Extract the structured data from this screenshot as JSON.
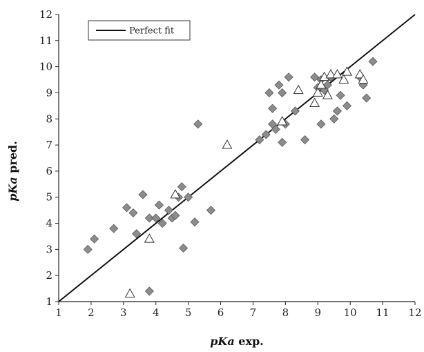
{
  "chart_data": {
    "type": "scatter",
    "xlabel": {
      "italic": "pKa",
      "rest": " exp."
    },
    "ylabel": {
      "italic": "pKa",
      "rest": " pred."
    },
    "xlim": [
      1,
      12
    ],
    "ylim": [
      1,
      12
    ],
    "xticks": [
      1,
      2,
      3,
      4,
      5,
      6,
      7,
      8,
      9,
      10,
      11,
      12
    ],
    "yticks": [
      1,
      2,
      3,
      4,
      5,
      6,
      7,
      8,
      9,
      10,
      11,
      12
    ],
    "grid": false,
    "legend": {
      "position": "top-left",
      "entries": [
        "Perfect fit"
      ]
    },
    "reference_line": {
      "name": "Perfect fit",
      "from": [
        1,
        1
      ],
      "to": [
        12,
        12
      ],
      "color": "#111111"
    },
    "series": [
      {
        "marker": "diamond",
        "color": "#8c8c8c",
        "points": [
          [
            1.9,
            3.0
          ],
          [
            2.1,
            3.4
          ],
          [
            2.7,
            3.8
          ],
          [
            3.1,
            4.6
          ],
          [
            3.3,
            4.4
          ],
          [
            3.4,
            3.6
          ],
          [
            3.6,
            5.1
          ],
          [
            3.8,
            4.2
          ],
          [
            3.8,
            1.4
          ],
          [
            4.0,
            4.2
          ],
          [
            4.1,
            4.7
          ],
          [
            4.2,
            4.0
          ],
          [
            4.4,
            4.5
          ],
          [
            4.5,
            4.2
          ],
          [
            4.6,
            4.3
          ],
          [
            4.7,
            5.0
          ],
          [
            4.8,
            5.4
          ],
          [
            4.85,
            3.05
          ],
          [
            5.0,
            5.0
          ],
          [
            5.2,
            4.05
          ],
          [
            5.3,
            7.8
          ],
          [
            5.7,
            4.5
          ],
          [
            7.2,
            7.2
          ],
          [
            7.4,
            7.4
          ],
          [
            7.5,
            9.0
          ],
          [
            7.6,
            8.4
          ],
          [
            7.6,
            7.8
          ],
          [
            7.7,
            7.6
          ],
          [
            7.8,
            9.3
          ],
          [
            7.9,
            9.0
          ],
          [
            7.9,
            7.1
          ],
          [
            8.0,
            7.8
          ],
          [
            8.1,
            9.6
          ],
          [
            8.3,
            8.3
          ],
          [
            8.6,
            7.2
          ],
          [
            8.9,
            9.6
          ],
          [
            9.0,
            9.2
          ],
          [
            9.1,
            9.5
          ],
          [
            9.1,
            7.8
          ],
          [
            9.2,
            9.1
          ],
          [
            9.3,
            9.3
          ],
          [
            9.4,
            9.6
          ],
          [
            9.5,
            8.0
          ],
          [
            9.6,
            8.3
          ],
          [
            9.7,
            8.9
          ],
          [
            9.9,
            8.5
          ],
          [
            10.3,
            9.6
          ],
          [
            10.4,
            9.3
          ],
          [
            10.5,
            8.8
          ],
          [
            10.7,
            10.2
          ]
        ]
      },
      {
        "marker": "triangle",
        "color": "#ffffff",
        "points": [
          [
            3.2,
            1.3
          ],
          [
            3.8,
            3.4
          ],
          [
            4.6,
            5.1
          ],
          [
            6.2,
            7.0
          ],
          [
            7.9,
            7.9
          ],
          [
            8.4,
            9.1
          ],
          [
            8.9,
            8.6
          ],
          [
            9.0,
            9.0
          ],
          [
            9.1,
            9.3
          ],
          [
            9.2,
            9.6
          ],
          [
            9.3,
            8.9
          ],
          [
            9.4,
            9.7
          ],
          [
            9.6,
            9.7
          ],
          [
            9.8,
            9.5
          ],
          [
            9.9,
            9.8
          ],
          [
            10.3,
            9.7
          ],
          [
            10.4,
            9.5
          ]
        ]
      }
    ]
  }
}
